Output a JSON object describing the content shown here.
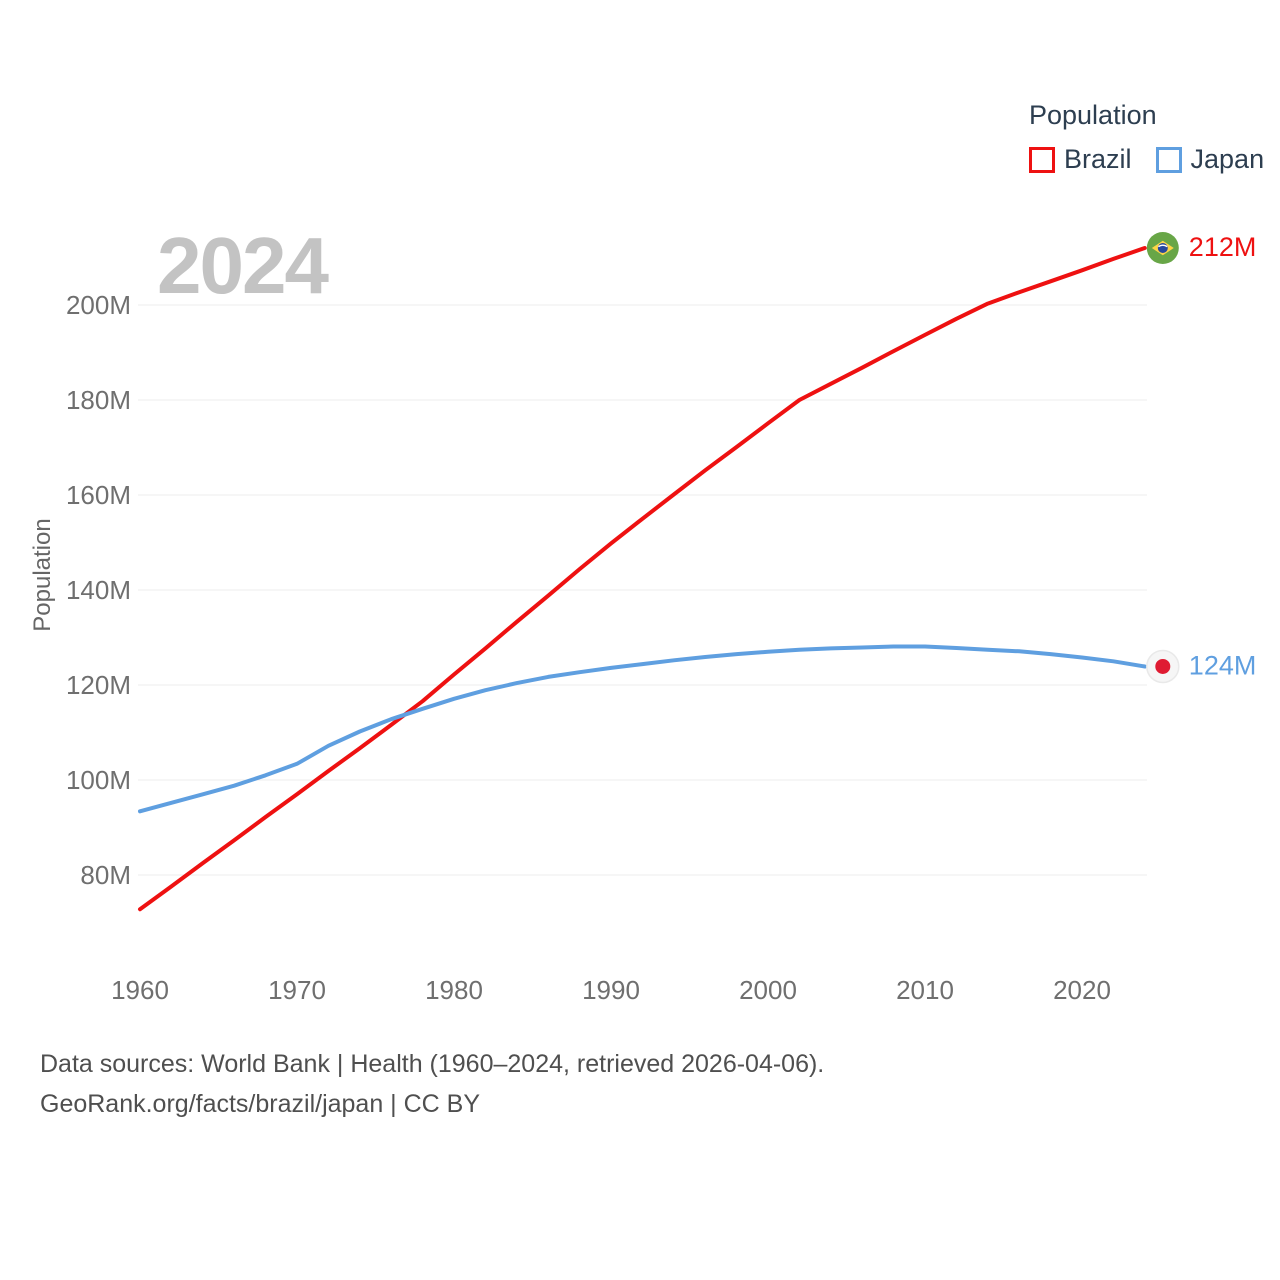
{
  "legend": {
    "title": "Population",
    "items": [
      {
        "label": "Brazil"
      },
      {
        "label": "Japan"
      }
    ]
  },
  "footer": {
    "line1": "Data sources: World Bank | Health (1960–2024, retrieved 2026-04-06).",
    "line2": "GeoRank.org/facts/brazil/japan | CC BY"
  },
  "chart_data": {
    "type": "line",
    "title": "",
    "xlabel": "",
    "ylabel": "Population",
    "watermark": "2024",
    "grid": true,
    "legend_position": "top-right",
    "xlim": [
      1960,
      2024
    ],
    "ylim": [
      66,
      216
    ],
    "x_ticks": [
      1960,
      1970,
      1980,
      1990,
      2000,
      2010,
      2020
    ],
    "y_ticks": [
      80,
      100,
      120,
      140,
      160,
      180,
      200
    ],
    "y_tick_suffix": "M",
    "series": [
      {
        "name": "Brazil",
        "color": "#ee1111",
        "end_label": "212M",
        "end_label_color": "#ee1111",
        "flag": "brazil",
        "years": [
          1960,
          1962,
          1964,
          1966,
          1968,
          1970,
          1972,
          1974,
          1976,
          1978,
          1980,
          1982,
          1984,
          1986,
          1988,
          1990,
          1992,
          1994,
          1996,
          1998,
          2000,
          2002,
          2004,
          2006,
          2008,
          2010,
          2012,
          2014,
          2016,
          2018,
          2020,
          2022,
          2024
        ],
        "values": [
          72.8,
          77.6,
          82.5,
          87.3,
          92.2,
          97.0,
          101.9,
          106.7,
          111.6,
          116.6,
          122.2,
          127.7,
          133.3,
          138.8,
          144.4,
          149.8,
          155.0,
          160.1,
          165.2,
          170.1,
          175.1,
          180.0,
          183.4,
          186.8,
          190.3,
          193.7,
          197.1,
          200.3,
          202.7,
          205.0,
          207.3,
          209.7,
          212.0
        ]
      },
      {
        "name": "Japan",
        "color": "#5f9fe0",
        "end_label": "124M",
        "end_label_color": "#5f9fe0",
        "flag": "japan",
        "years": [
          1960,
          1962,
          1964,
          1966,
          1968,
          1970,
          1972,
          1974,
          1976,
          1978,
          1980,
          1982,
          1984,
          1986,
          1988,
          1990,
          1992,
          1994,
          1996,
          1998,
          2000,
          2002,
          2004,
          2006,
          2008,
          2010,
          2012,
          2014,
          2016,
          2018,
          2020,
          2022,
          2024
        ],
        "values": [
          93.4,
          95.2,
          97.0,
          98.8,
          101.0,
          103.4,
          107.2,
          110.2,
          112.8,
          115.0,
          117.1,
          118.9,
          120.4,
          121.7,
          122.7,
          123.6,
          124.4,
          125.2,
          125.9,
          126.5,
          127.0,
          127.4,
          127.7,
          127.9,
          128.1,
          128.1,
          127.8,
          127.4,
          127.1,
          126.5,
          125.8,
          125.0,
          123.9
        ]
      }
    ]
  }
}
